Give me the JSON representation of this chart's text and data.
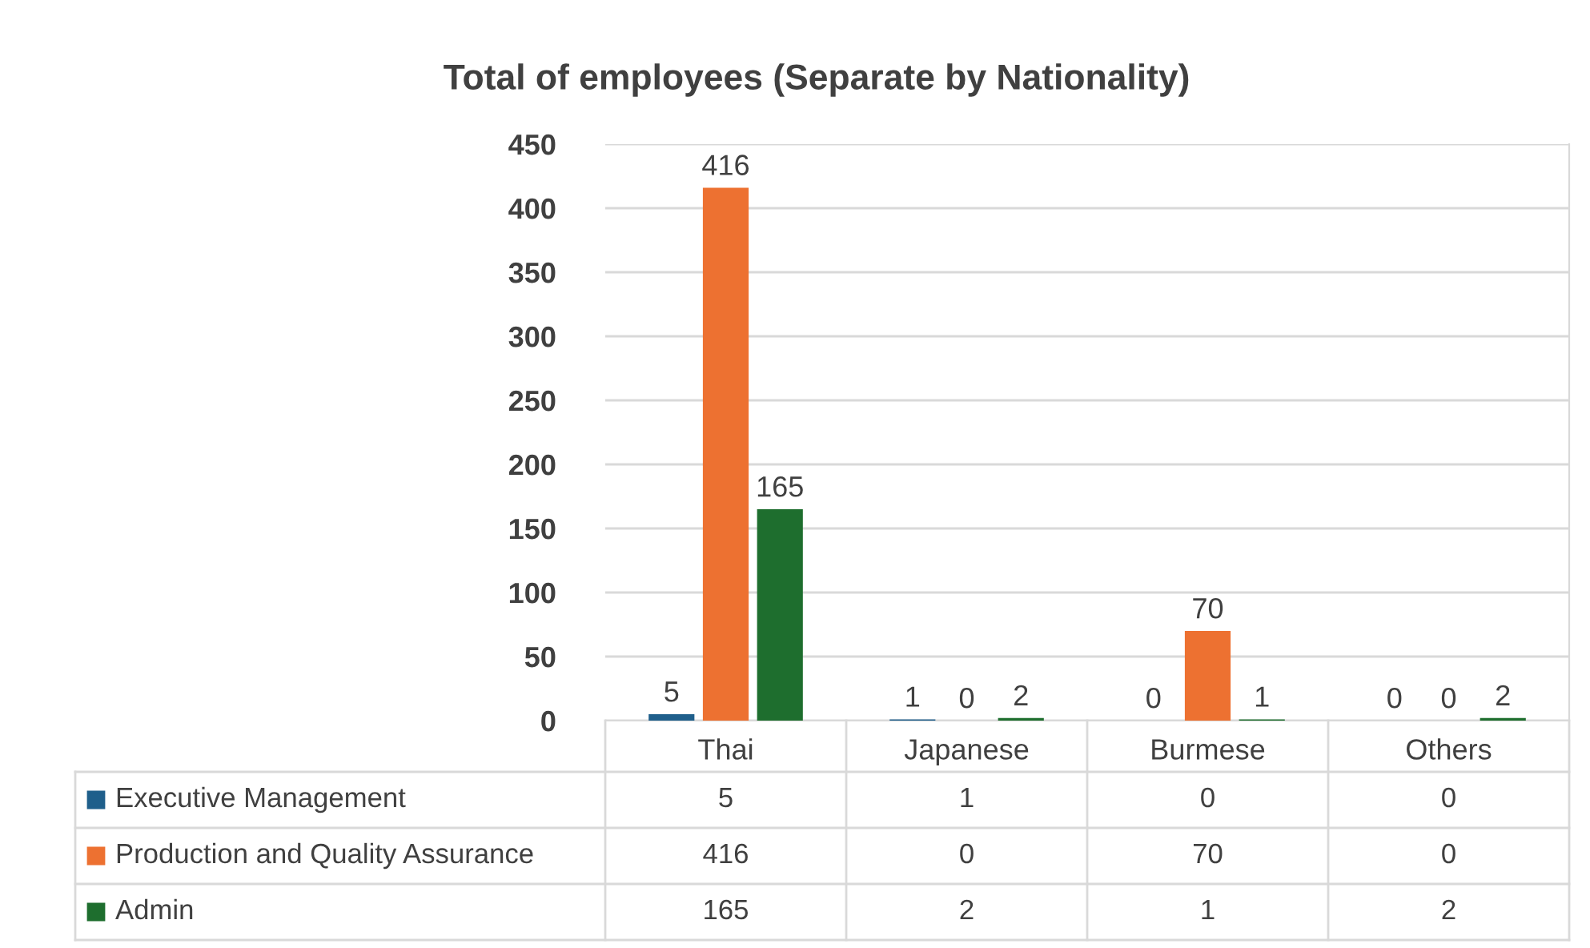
{
  "chart_data": {
    "type": "bar",
    "title": "Total of employees (Separate by Nationality)",
    "categories": [
      "Thai",
      "Japanese",
      "Burmese",
      "Others"
    ],
    "series": [
      {
        "name": "Executive Management",
        "color": "#1f5f8b",
        "values": [
          5,
          1,
          0,
          0
        ],
        "value_labels": [
          "5",
          "1",
          "0",
          "0"
        ]
      },
      {
        "name": "Production and Quality Assurance",
        "color": "#ed7131",
        "values": [
          416,
          0,
          70,
          0
        ],
        "value_labels": [
          "416",
          "0",
          "70",
          "0"
        ]
      },
      {
        "name": "Admin",
        "color": "#1e6e2e",
        "values": [
          165,
          2,
          1,
          2
        ],
        "value_labels": [
          "165",
          "2",
          "1",
          "2"
        ]
      }
    ],
    "ylim": [
      0,
      450
    ],
    "yticks": [
      0,
      50,
      100,
      150,
      200,
      250,
      300,
      350,
      400,
      450
    ],
    "grid": "y",
    "data_labels": true,
    "legend": "bottom"
  }
}
